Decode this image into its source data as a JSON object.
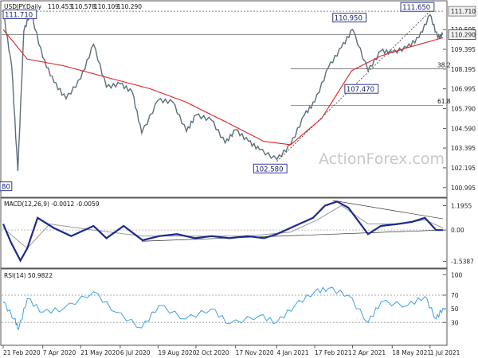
{
  "chart_data": [
    {
      "type": "line",
      "subtype": "candlestick",
      "title": "USDJPY.Daily",
      "header_values": [
        "110.453",
        "110.578",
        "110.109",
        "110.290"
      ],
      "x_ticks": [
        "21 Feb 2020",
        "7 Apr 2020",
        "21 May 2020",
        "6 Jul 2020",
        "19 Aug 2020",
        "2 Oct 2020",
        "17 Nov 2020",
        "4 Jan 2021",
        "17 Feb 2021",
        "2 Apr 2021",
        "18 May 2021",
        "1 Jul 2021"
      ],
      "y_ticks": [
        "110.595",
        "109.395",
        "108.195",
        "106.995",
        "105.790",
        "104.590",
        "103.395",
        "102.195",
        "100.995"
      ],
      "ylim": [
        100.5,
        112.2
      ],
      "current_price": "110.290",
      "ref_price": "111.710",
      "annotations": [
        "111.710",
        "110.950",
        "111.650",
        "107.470",
        "102.580",
        "80"
      ],
      "fib_levels": [
        {
          "label": "38.2",
          "value": 108.2
        },
        {
          "label": "61.8",
          "value": 106.0
        }
      ],
      "series": [
        {
          "name": "",
          "x": [
            "2020-02-21",
            "2020-03-02",
            "2020-03-09",
            "2020-03-16",
            "2020-03-24",
            "2020-04-07",
            "2020-04-20",
            "2020-05-04",
            "2020-05-21",
            "2020-06-05",
            "2020-06-20",
            "2020-07-06",
            "2020-07-20",
            "2020-07-31",
            "2020-08-19",
            "2020-09-05",
            "2020-09-21",
            "2020-10-02",
            "2020-10-20",
            "2020-11-05",
            "2020-11-17",
            "2020-12-02",
            "2020-12-15",
            "2021-01-04",
            "2021-01-20",
            "2021-02-05",
            "2021-02-17",
            "2021-03-05",
            "2021-03-20",
            "2021-04-02",
            "2021-04-20",
            "2021-05-05",
            "2021-05-18",
            "2021-06-04",
            "2021-06-18",
            "2021-07-01",
            "2021-07-10",
            "2021-07-16"
          ],
          "y": [
            111.7,
            108.3,
            102.0,
            110.5,
            111.7,
            108.9,
            107.4,
            106.4,
            107.6,
            109.7,
            107.1,
            107.3,
            106.8,
            104.3,
            106.3,
            106.2,
            104.4,
            105.4,
            105.1,
            103.7,
            104.5,
            103.8,
            103.3,
            102.7,
            103.6,
            105.4,
            106.2,
            108.3,
            109.5,
            110.6,
            108.1,
            109.3,
            109.2,
            109.5,
            110.1,
            111.5,
            110.1,
            110.3
          ]
        },
        {
          "name": "",
          "x": [
            "2020-02-21",
            "2020-03-20",
            "2020-05-01",
            "2020-06-20",
            "2020-08-10",
            "2020-09-20",
            "2020-11-05",
            "2020-12-20",
            "2021-01-20",
            "2021-02-25",
            "2021-04-01",
            "2021-05-05",
            "2021-06-05",
            "2021-07-16"
          ],
          "y": [
            110.6,
            108.8,
            108.4,
            107.7,
            107.0,
            106.2,
            105.0,
            103.8,
            103.6,
            105.2,
            108.1,
            109.0,
            109.5,
            110.1
          ]
        }
      ]
    },
    {
      "type": "line",
      "title": "MACD(12,26,9) -0.0012 -0.0059",
      "y_ticks": [
        "1.1955",
        "0.00",
        "-1.5387"
      ],
      "ylim": [
        -1.75,
        1.45
      ],
      "series": [
        {
          "name": "",
          "x": [
            "2020-02-21",
            "2020-03-01",
            "2020-03-12",
            "2020-03-20",
            "2020-04-01",
            "2020-04-20",
            "2020-05-10",
            "2020-06-05",
            "2020-06-20",
            "2020-07-10",
            "2020-08-01",
            "2020-08-20",
            "2020-09-10",
            "2020-10-01",
            "2020-10-20",
            "2020-11-10",
            "2020-12-01",
            "2020-12-20",
            "2021-01-04",
            "2021-01-25",
            "2021-02-15",
            "2021-03-01",
            "2021-03-15",
            "2021-03-28",
            "2021-04-20",
            "2021-05-05",
            "2021-05-25",
            "2021-06-10",
            "2021-06-25",
            "2021-07-08",
            "2021-07-16"
          ],
          "y": [
            0.3,
            -0.6,
            -1.5,
            -0.9,
            0.6,
            0.1,
            -0.3,
            0.2,
            -0.4,
            0.2,
            -0.5,
            -0.3,
            -0.2,
            -0.4,
            -0.3,
            -0.4,
            -0.3,
            -0.4,
            -0.2,
            0.2,
            0.6,
            1.2,
            1.4,
            1.1,
            -0.2,
            0.2,
            0.3,
            0.4,
            0.6,
            0.0,
            0.0
          ]
        },
        {
          "name": "",
          "x": [
            "2020-02-21",
            "2020-03-20",
            "2020-04-15",
            "2020-06-05",
            "2020-08-01",
            "2020-10-01",
            "2020-12-01",
            "2021-01-20",
            "2021-02-20",
            "2021-03-20",
            "2021-04-20",
            "2021-05-25",
            "2021-06-25",
            "2021-07-16"
          ],
          "y": [
            0.1,
            -0.9,
            0.3,
            0.0,
            -0.3,
            -0.3,
            -0.3,
            -0.1,
            0.5,
            1.2,
            0.3,
            0.3,
            0.5,
            0.1
          ]
        }
      ]
    },
    {
      "type": "line",
      "title": "RSI(14) 50.9822",
      "y_ticks": [
        "100",
        "70",
        "50",
        "30"
      ],
      "ylim": [
        0,
        105
      ],
      "series": [
        {
          "name": "",
          "x": [
            "2020-02-21",
            "2020-03-05",
            "2020-03-10",
            "2020-03-20",
            "2020-04-07",
            "2020-05-01",
            "2020-06-05",
            "2020-07-01",
            "2020-07-31",
            "2020-08-20",
            "2020-09-20",
            "2020-10-20",
            "2020-11-10",
            "2020-12-15",
            "2021-01-04",
            "2021-01-25",
            "2021-02-17",
            "2021-03-05",
            "2021-03-28",
            "2021-04-20",
            "2021-05-05",
            "2021-06-05",
            "2021-06-25",
            "2021-07-08",
            "2021-07-16"
          ],
          "y": [
            60,
            35,
            20,
            65,
            45,
            50,
            75,
            45,
            22,
            55,
            35,
            50,
            28,
            40,
            30,
            55,
            75,
            80,
            70,
            30,
            60,
            55,
            68,
            35,
            51
          ]
        }
      ]
    }
  ],
  "watermark": "ActionForex.com",
  "colors": {
    "price": "#5b6e7a",
    "ema": "#e02020",
    "macd": "#1b2a8c",
    "signal": "#9a9a9a",
    "rsi": "#3ba0e6",
    "box": "#2e3a8c"
  }
}
